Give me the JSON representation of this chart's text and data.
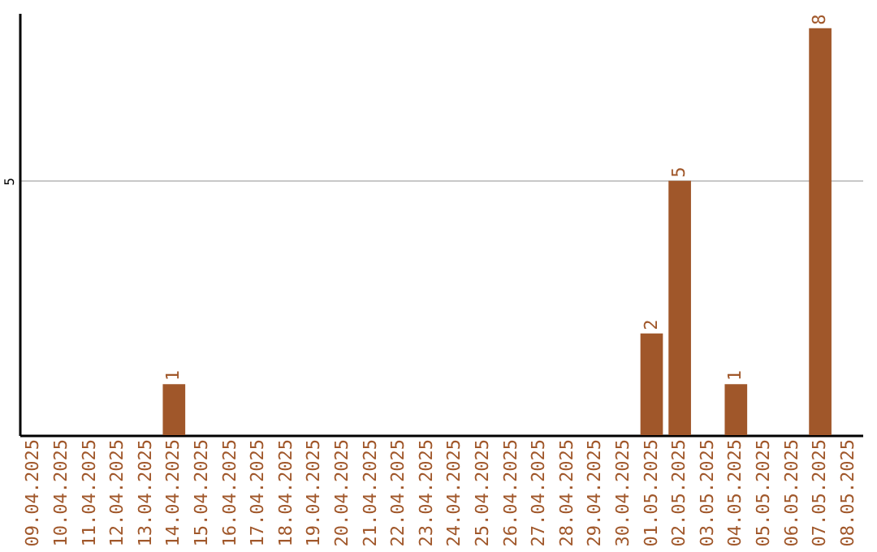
{
  "chart_data": {
    "type": "bar",
    "categories": [
      "09.04.2025",
      "10.04.2025",
      "11.04.2025",
      "12.04.2025",
      "13.04.2025",
      "14.04.2025",
      "15.04.2025",
      "16.04.2025",
      "17.04.2025",
      "18.04.2025",
      "19.04.2025",
      "20.04.2025",
      "21.04.2025",
      "22.04.2025",
      "23.04.2025",
      "24.04.2025",
      "25.04.2025",
      "26.04.2025",
      "27.04.2025",
      "28.04.2025",
      "29.04.2025",
      "30.04.2025",
      "01.05.2025",
      "02.05.2025",
      "03.05.2025",
      "04.05.2025",
      "05.05.2025",
      "06.05.2025",
      "07.05.2025",
      "08.05.2025"
    ],
    "values": [
      0,
      0,
      0,
      0,
      0,
      1,
      0,
      0,
      0,
      0,
      0,
      0,
      0,
      0,
      0,
      0,
      0,
      0,
      0,
      0,
      0,
      0,
      2,
      5,
      0,
      1,
      0,
      0,
      8,
      0
    ],
    "value_labels": [
      null,
      null,
      null,
      null,
      null,
      "1",
      null,
      null,
      null,
      null,
      null,
      null,
      null,
      null,
      null,
      null,
      null,
      null,
      null,
      null,
      null,
      null,
      "2",
      "5",
      null,
      "1",
      null,
      null,
      "8",
      null
    ],
    "color": "#a0572a",
    "ylim": [
      0,
      8.3
    ],
    "yticks": [
      5
    ],
    "grid": "y"
  }
}
